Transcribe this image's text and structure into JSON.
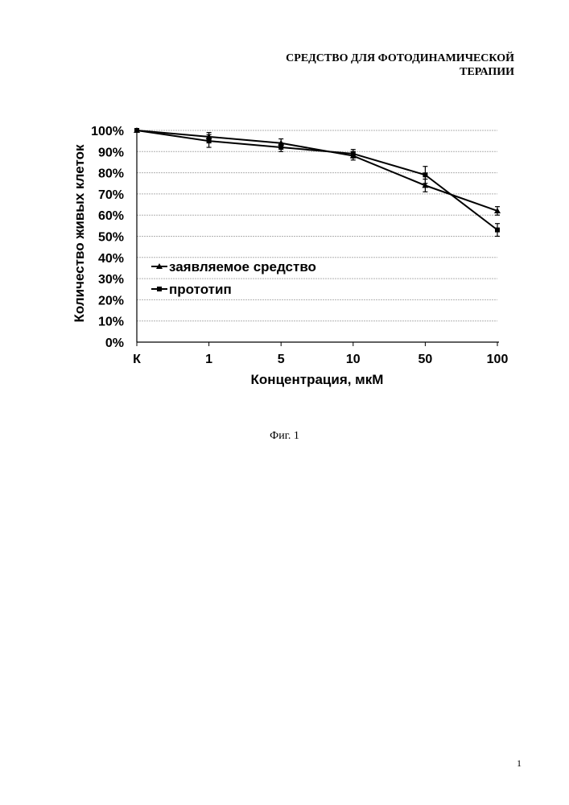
{
  "header": {
    "line1": "СРЕДСТВО ДЛЯ ФОТОДИНАМИЧЕСКОЙ",
    "line2": "ТЕРАПИИ"
  },
  "caption": "Фиг. 1",
  "page_number": "1",
  "chart_data": {
    "type": "line",
    "categories": [
      "К",
      "1",
      "5",
      "10",
      "50",
      "100"
    ],
    "series": [
      {
        "name": "заявляемое средство",
        "marker": "triangle",
        "values": [
          100,
          97,
          94,
          88,
          74,
          62
        ],
        "errors": [
          0,
          2,
          2,
          2,
          3,
          2
        ]
      },
      {
        "name": "прототип",
        "marker": "square",
        "values": [
          100,
          95,
          92,
          89,
          79,
          53
        ],
        "errors": [
          0,
          3,
          2,
          2,
          4,
          3
        ]
      }
    ],
    "ylim": [
      0,
      100
    ],
    "yticks": [
      "0%",
      "10%",
      "20%",
      "30%",
      "40%",
      "50%",
      "60%",
      "70%",
      "80%",
      "90%",
      "100%"
    ],
    "xlabel": "Концентрация, мкМ",
    "ylabel": "Количество живых клеток",
    "grid": true,
    "legend_position": "center-left",
    "colors": {
      "line": "#000000",
      "grid": "#b0b0b0"
    }
  }
}
